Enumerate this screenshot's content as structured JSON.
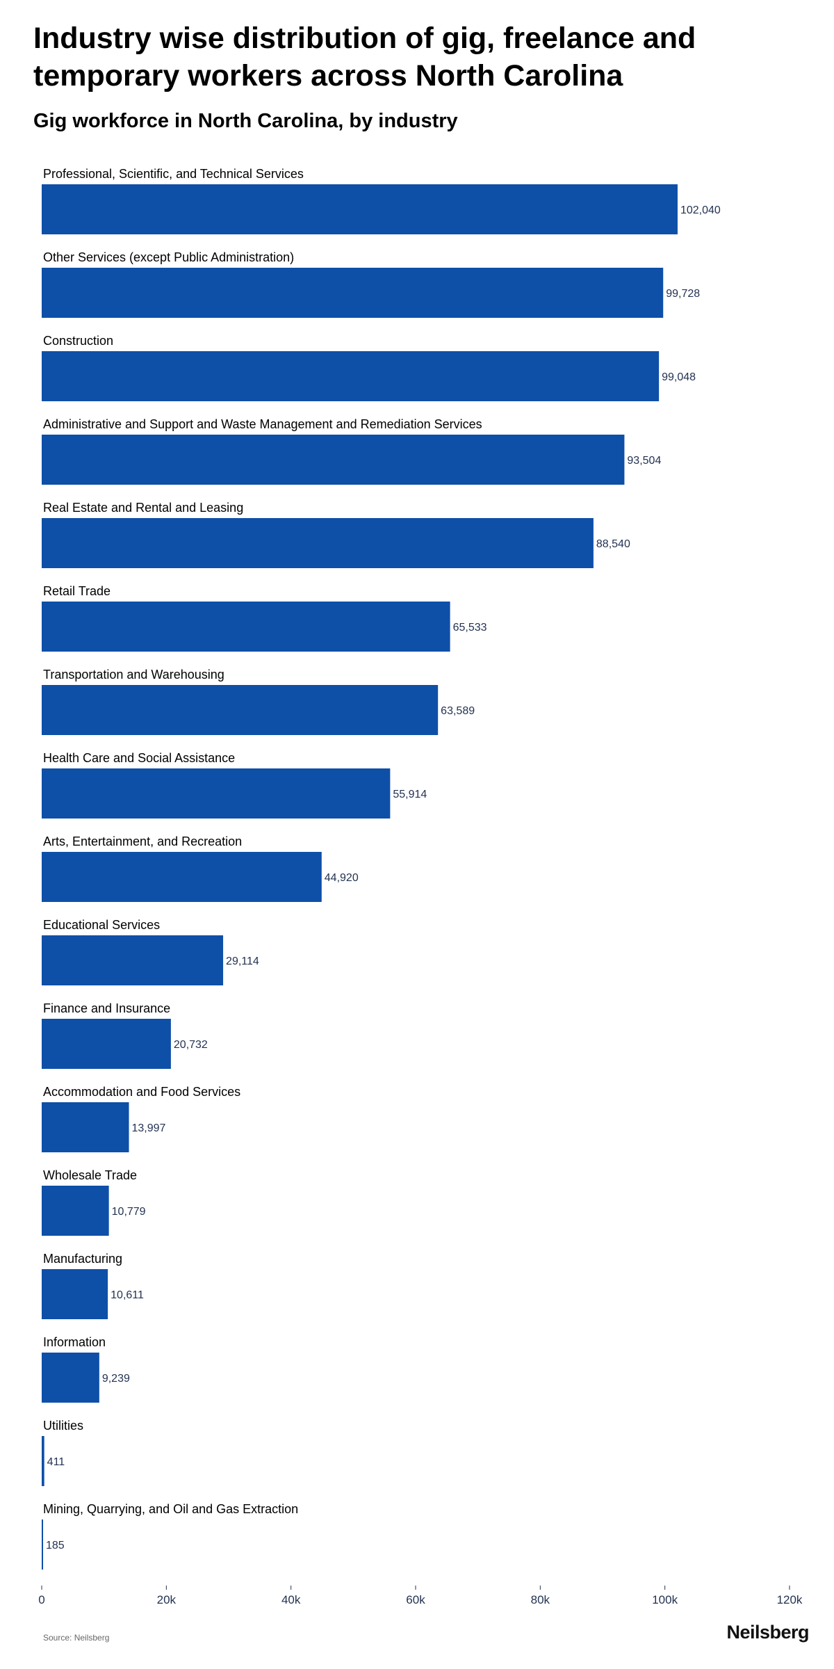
{
  "title": "Industry wise distribution of gig, freelance and temporary workers across North Carolina",
  "subtitle": "Gig workforce in North Carolina, by industry",
  "source": "Source: Neilsberg",
  "brand": "Neilsberg",
  "chart_data": {
    "type": "bar",
    "orientation": "horizontal",
    "categories": [
      "Professional, Scientific, and Technical Services",
      "Other Services (except Public Administration)",
      "Construction",
      "Administrative and Support and Waste Management and Remediation Services",
      "Real Estate and Rental and Leasing",
      "Retail Trade",
      "Transportation and Warehousing",
      "Health Care and Social Assistance",
      "Arts, Entertainment, and Recreation",
      "Educational Services",
      "Finance and Insurance",
      "Accommodation and Food Services",
      "Wholesale Trade",
      "Manufacturing",
      "Information",
      "Utilities",
      "Mining, Quarrying, and Oil and Gas Extraction"
    ],
    "values": [
      102040,
      99728,
      99048,
      93504,
      88540,
      65533,
      63589,
      55914,
      44920,
      29114,
      20732,
      13997,
      10779,
      10611,
      9239,
      411,
      185
    ],
    "value_labels": [
      "102,040",
      "99,728",
      "99,048",
      "93,504",
      "88,540",
      "65,533",
      "63,589",
      "55,914",
      "44,920",
      "29,114",
      "20,732",
      "13,997",
      "10,779",
      "10,611",
      "9,239",
      "411",
      "185"
    ],
    "x_ticks": [
      0,
      20000,
      40000,
      60000,
      80000,
      100000,
      120000
    ],
    "x_tick_labels": [
      "0",
      "20k",
      "40k",
      "60k",
      "80k",
      "100k",
      "120k"
    ],
    "xlim": [
      0,
      120000
    ],
    "bar_color": "#0e4fa8",
    "grid": false,
    "legend": "none"
  }
}
